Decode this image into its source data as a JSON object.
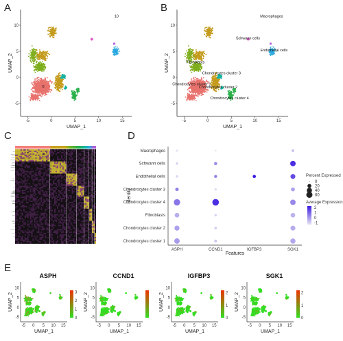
{
  "panels": [
    "A",
    "B",
    "C",
    "D",
    "E"
  ],
  "chart_data": [
    {
      "id": "A",
      "type": "scatter",
      "xlabel": "UMAP_1",
      "ylabel": "UMAP_2",
      "xticks": [
        -5,
        0,
        5,
        10,
        15
      ],
      "yticks": [
        -5,
        0,
        5,
        10
      ],
      "xlim": [
        -6.5,
        17
      ],
      "ylim": [
        -7.5,
        13
      ],
      "cluster_labels": [
        {
          "text": "0",
          "x": -1.7,
          "y": -2.0
        },
        {
          "text": "10",
          "x": 13.8,
          "y": 11.5
        }
      ]
    },
    {
      "id": "B",
      "type": "scatter",
      "xlabel": "UMAP_1",
      "ylabel": "UMAP_2",
      "xticks": [
        -5,
        0,
        5,
        10,
        15
      ],
      "yticks": [
        -5,
        0,
        5,
        10
      ],
      "xlim": [
        -6.5,
        17
      ],
      "ylim": [
        -7.5,
        13
      ],
      "clusters": [
        {
          "name": "Macrophages",
          "color": "#b05fd6",
          "x": 13.5,
          "y": 11.5
        },
        {
          "name": "Schwann cells",
          "color": "#e055c8",
          "x": 8.5,
          "y": 7.3
        },
        {
          "name": "Endothelial cells",
          "color": "#29a9e0",
          "x": 14.0,
          "y": 5.0
        },
        {
          "name": "Fibroblasts",
          "color": "#7fae1c",
          "x": -2.6,
          "y": 2.7
        },
        {
          "name": "Chondrocytes cluster 3",
          "color": "#16b2a0",
          "x": 2.9,
          "y": 0.6
        },
        {
          "name": "Chondrocytes cluster 1",
          "color": "#e8726d",
          "x": -3.4,
          "y": -1.5
        },
        {
          "name": "Chondrocytes cluster 2",
          "color": "#c49a1b",
          "x": 2.2,
          "y": -2.1
        },
        {
          "name": "Chondrocytes cluster 4",
          "color": "#2bb14b",
          "x": 4.6,
          "y": -4.2
        }
      ]
    },
    {
      "id": "C",
      "type": "heatmap"
    },
    {
      "id": "D",
      "type": "scatter",
      "title": "",
      "xlabel": "Features",
      "ylabel": "Identity",
      "features": [
        "ASPH",
        "CCND1",
        "IGFBP3",
        "SGK1"
      ],
      "identities": [
        "Chondrocytes cluster 1",
        "Chondrocytes cluster 2",
        "Fibroblasts",
        "Chondrocytes cluster 4",
        "Chondrocytes cluster 3",
        "Endothelial cells",
        "Schwann cells",
        "Macrophages"
      ],
      "percent_expressed": [
        [
          45,
          8,
          0,
          40
        ],
        [
          38,
          6,
          0,
          35
        ],
        [
          30,
          5,
          0,
          30
        ],
        [
          65,
          70,
          0,
          45
        ],
        [
          15,
          4,
          0,
          20
        ],
        [
          6,
          10,
          12,
          35
        ],
        [
          5,
          12,
          0,
          45
        ],
        [
          3,
          2,
          0,
          8
        ]
      ],
      "average_expression": [
        [
          0.2,
          -0.5,
          -1,
          0.0
        ],
        [
          0.1,
          -0.6,
          -1,
          -0.1
        ],
        [
          -0.1,
          -0.7,
          -1,
          -0.2
        ],
        [
          0.8,
          2.0,
          -1,
          0.5
        ],
        [
          0.6,
          -0.8,
          -1,
          0.1
        ],
        [
          -0.8,
          0.6,
          2.3,
          1.5
        ],
        [
          -0.7,
          0.4,
          -1,
          2.0
        ],
        [
          -0.9,
          -1,
          -1,
          -0.5
        ]
      ],
      "legend": {
        "size_title": "Percent Expressed",
        "size_values": [
          0,
          20,
          40,
          60
        ],
        "color_title": "Average Expression",
        "color_ticks": [
          2,
          1,
          0,
          -1
        ],
        "color_low": "#e4e4f2",
        "color_high": "#3b1ce0"
      }
    },
    {
      "id": "E",
      "type": "scatter",
      "xlabel": "UMAP_1",
      "ylabel": "UMAP_2",
      "xticks": [
        -5,
        0,
        5,
        10,
        15
      ],
      "yticks": [
        -5,
        0,
        5,
        10
      ],
      "genes": [
        {
          "name": "ASPH",
          "scale_ticks": [
            3,
            2,
            1,
            0
          ]
        },
        {
          "name": "CCND1",
          "scale_ticks": []
        },
        {
          "name": "IGFBP3",
          "scale_ticks": [
            2,
            1,
            0
          ]
        },
        {
          "name": "SGK1",
          "scale_ticks": [
            2,
            1,
            0
          ]
        }
      ],
      "color_low": "#33dd22",
      "color_high": "#ee3300"
    }
  ]
}
